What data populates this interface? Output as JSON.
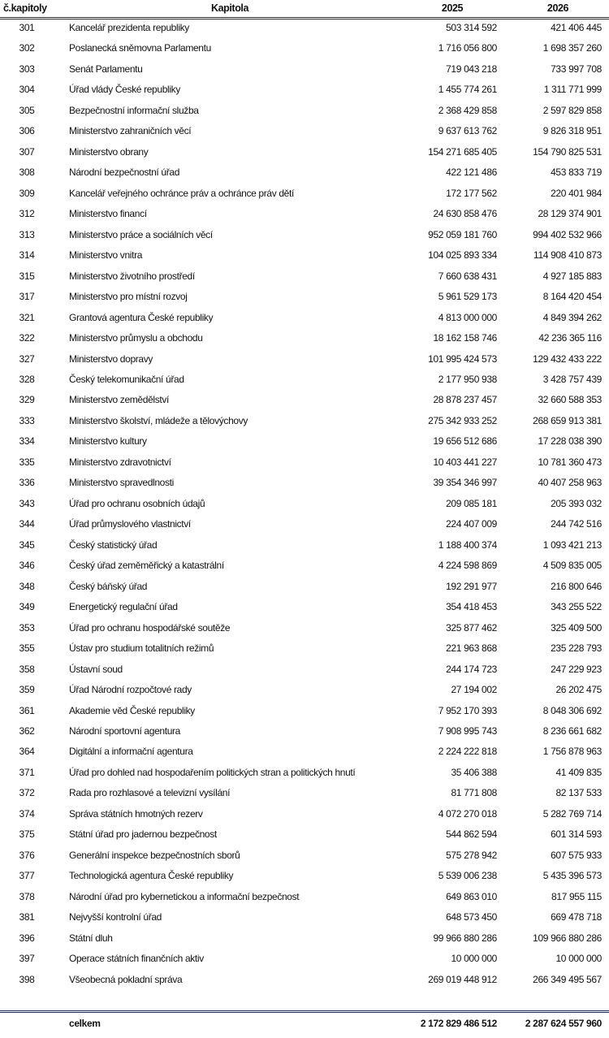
{
  "header": {
    "code": "č.kapitoly",
    "name": "Kapitola",
    "y2025": "2025",
    "y2026": "2026"
  },
  "rows": [
    {
      "code": "301",
      "name": "Kancelář prezidenta republiky",
      "y2025": "503 314 592",
      "y2026": "421 406 445"
    },
    {
      "code": "302",
      "name": "Poslanecká sněmovna Parlamentu",
      "y2025": "1 716 056 800",
      "y2026": "1 698 357 260"
    },
    {
      "code": "303",
      "name": "Senát Parlamentu",
      "y2025": "719 043 218",
      "y2026": "733 997 708"
    },
    {
      "code": "304",
      "name": "Úřad vlády České republiky",
      "y2025": "1 455 774 261",
      "y2026": "1 311 771 999"
    },
    {
      "code": "305",
      "name": "Bezpečnostní informační služba",
      "y2025": "2 368 429 858",
      "y2026": "2 597 829 858"
    },
    {
      "code": "306",
      "name": "Ministerstvo zahraničních věcí",
      "y2025": "9 637 613 762",
      "y2026": "9 826 318 951"
    },
    {
      "code": "307",
      "name": "Ministerstvo obrany",
      "y2025": "154 271 685 405",
      "y2026": "154 790 825 531"
    },
    {
      "code": "308",
      "name": "Národní bezpečnostní úřad",
      "y2025": "422 121 486",
      "y2026": "453 833 719"
    },
    {
      "code": "309",
      "name": "Kancelář veřejného ochránce práv a ochránce práv dětí",
      "y2025": "172 177 562",
      "y2026": "220 401 984"
    },
    {
      "code": "312",
      "name": "Ministerstvo financí",
      "y2025": "24 630 858 476",
      "y2026": "28 129 374 901"
    },
    {
      "code": "313",
      "name": "Ministerstvo práce a sociálních věcí",
      "y2025": "952 059 181 760",
      "y2026": "994 402 532 966"
    },
    {
      "code": "314",
      "name": "Ministerstvo vnitra",
      "y2025": "104 025 893 334",
      "y2026": "114 908 410 873"
    },
    {
      "code": "315",
      "name": "Ministerstvo životního prostředí",
      "y2025": "7 660 638 431",
      "y2026": "4 927 185 883"
    },
    {
      "code": "317",
      "name": "Ministerstvo pro místní rozvoj",
      "y2025": "5 961 529 173",
      "y2026": "8 164 420 454"
    },
    {
      "code": "321",
      "name": "Grantová agentura České republiky",
      "y2025": "4 813 000 000",
      "y2026": "4 849 394 262"
    },
    {
      "code": "322",
      "name": "Ministerstvo průmyslu a obchodu",
      "y2025": "18 162 158 746",
      "y2026": "42 236 365 116"
    },
    {
      "code": "327",
      "name": "Ministerstvo dopravy",
      "y2025": "101 995 424 573",
      "y2026": "129 432 433 222"
    },
    {
      "code": "328",
      "name": "Český telekomunikační úřad",
      "y2025": "2 177 950 938",
      "y2026": "3 428 757 439"
    },
    {
      "code": "329",
      "name": "Ministerstvo zemědělství",
      "y2025": "28 878 237 457",
      "y2026": "32 660 588 353"
    },
    {
      "code": "333",
      "name": "Ministerstvo školství, mládeže a tělovýchovy",
      "y2025": "275 342 933 252",
      "y2026": "268 659 913 381"
    },
    {
      "code": "334",
      "name": "Ministerstvo kultury",
      "y2025": "19 656 512 686",
      "y2026": "17 228 038 390"
    },
    {
      "code": "335",
      "name": "Ministerstvo zdravotnictví",
      "y2025": "10 403 441 227",
      "y2026": "10 781 360 473"
    },
    {
      "code": "336",
      "name": "Ministerstvo spravedlnosti",
      "y2025": "39 354 346 997",
      "y2026": "40 407 258 963"
    },
    {
      "code": "343",
      "name": "Úřad pro ochranu osobních údajů",
      "y2025": "209 085 181",
      "y2026": "205 393 032"
    },
    {
      "code": "344",
      "name": "Úřad průmyslového vlastnictví",
      "y2025": "224 407 009",
      "y2026": "244 742 516"
    },
    {
      "code": "345",
      "name": "Český statistický úřad",
      "y2025": "1 188 400 374",
      "y2026": "1 093 421 213"
    },
    {
      "code": "346",
      "name": "Český úřad zeměměřický a katastrální",
      "y2025": "4 224 598 869",
      "y2026": "4 509 835 005"
    },
    {
      "code": "348",
      "name": "Český báňský úřad",
      "y2025": "192 291 977",
      "y2026": "216 800 646"
    },
    {
      "code": "349",
      "name": "Energetický regulační úřad",
      "y2025": "354 418 453",
      "y2026": "343 255 522"
    },
    {
      "code": "353",
      "name": "Úřad pro ochranu hospodářské soutěže",
      "y2025": "325 877 462",
      "y2026": "325 409 500"
    },
    {
      "code": "355",
      "name": "Ústav pro studium totalitních režimů",
      "y2025": "221 963 868",
      "y2026": "235 228 793"
    },
    {
      "code": "358",
      "name": "Ústavní soud",
      "y2025": "244 174 723",
      "y2026": "247 229 923"
    },
    {
      "code": "359",
      "name": "Úřad Národní rozpočtové rady",
      "y2025": "27 194 002",
      "y2026": "26 202 475"
    },
    {
      "code": "361",
      "name": "Akademie věd České republiky",
      "y2025": "7 952 170 393",
      "y2026": "8 048 306 692"
    },
    {
      "code": "362",
      "name": "Národní sportovní agentura",
      "y2025": "7 908 995 743",
      "y2026": "8 236 661 682"
    },
    {
      "code": "364",
      "name": "Digitální a informační agentura",
      "y2025": "2 224 222 818",
      "y2026": "1 756 878 963"
    },
    {
      "code": "371",
      "name": "Úřad pro dohled nad hospodařením politických stran a politických hnutí",
      "y2025": "35 406 388",
      "y2026": "41 409 835"
    },
    {
      "code": "372",
      "name": "Rada pro rozhlasové a televizní vysílání",
      "y2025": "81 771 808",
      "y2026": "82 137 533"
    },
    {
      "code": "374",
      "name": "Správa státních hmotných rezerv",
      "y2025": "4 072 270 018",
      "y2026": "5 282 769 714"
    },
    {
      "code": "375",
      "name": "Státní úřad pro jadernou bezpečnost",
      "y2025": "544 862 594",
      "y2026": "601 314 593"
    },
    {
      "code": "376",
      "name": "Generální inspekce bezpečnostních sborů",
      "y2025": "575 278 942",
      "y2026": "607 575 933"
    },
    {
      "code": "377",
      "name": "Technologická agentura České republiky",
      "y2025": "5 539 006 238",
      "y2026": "5 435 396 573"
    },
    {
      "code": "378",
      "name": "Národní úřad pro kybernetickou a informační bezpečnost",
      "y2025": "649 863 010",
      "y2026": "817 955 115"
    },
    {
      "code": "381",
      "name": "Nejvyšší kontrolní úřad",
      "y2025": "648 573 450",
      "y2026": "669 478 718"
    },
    {
      "code": "396",
      "name": "Státní dluh",
      "y2025": "99 966 880 286",
      "y2026": "109 966 880 286"
    },
    {
      "code": "397",
      "name": "Operace státních finančních aktiv",
      "y2025": "10 000 000",
      "y2026": "10 000 000"
    },
    {
      "code": "398",
      "name": "Všeobecná pokladní správa",
      "y2025": "269 019 448 912",
      "y2026": "266 349 495 567"
    }
  ],
  "total": {
    "label": "celkem",
    "y2025": "2 172 829 486 512",
    "y2026": "2 287 624 557 960"
  },
  "colors": {
    "rule": "#1f2a5c"
  }
}
